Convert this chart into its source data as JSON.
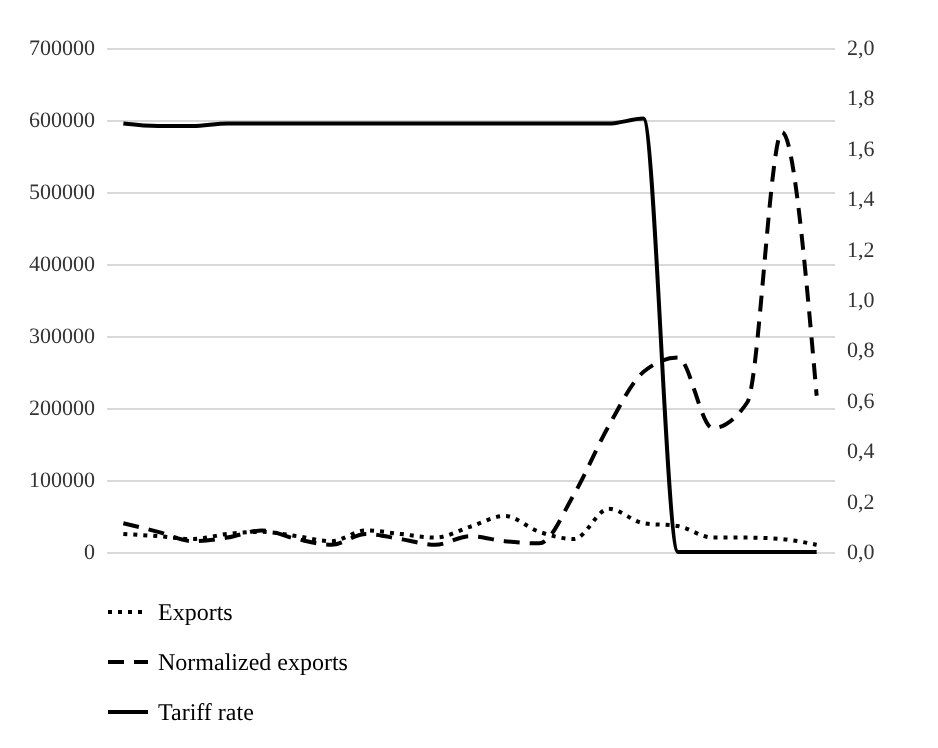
{
  "chart_data": {
    "type": "line",
    "categories": [
      null,
      null,
      null,
      null,
      null,
      null,
      null,
      null,
      null,
      null,
      null,
      null,
      null,
      null,
      null,
      null,
      null,
      null,
      null,
      null,
      null
    ],
    "series": [
      {
        "name": "Exports",
        "color": "#000000",
        "line_style": "dotted",
        "values": [
          25000,
          22000,
          18000,
          25000,
          28000,
          22000,
          15000,
          30000,
          25000,
          20000,
          35000,
          50000,
          28000,
          18000,
          60000,
          40000,
          36000,
          20000,
          20000,
          18000,
          10000
        ]
      },
      {
        "name": "Normalized exports",
        "color": "#000000",
        "line_style": "dashed",
        "values": [
          40000,
          28000,
          15000,
          20000,
          30000,
          18000,
          10000,
          25000,
          18000,
          10000,
          22000,
          15000,
          12000,
          80000,
          175000,
          250000,
          270000,
          172000,
          208000,
          583000,
          217000
        ]
      },
      {
        "name": "Tariff rate",
        "color": "#000000",
        "line_style": "solid",
        "axis": "y2",
        "values": [
          1.7,
          1.69,
          1.69,
          1.7,
          1.7,
          1.7,
          1.7,
          1.7,
          1.7,
          1.7,
          1.7,
          1.7,
          1.7,
          1.7,
          1.7,
          1.72,
          0,
          0,
          0,
          0,
          0
        ]
      }
    ],
    "ylim": [
      0,
      700000
    ],
    "yticks": [
      0,
      100000,
      200000,
      300000,
      400000,
      500000,
      600000,
      700000
    ],
    "y2lim": [
      0,
      2.0
    ],
    "y2ticks": [
      {
        "value": 0,
        "label": "0,0"
      },
      {
        "value": 0.2,
        "label": "0,2"
      },
      {
        "value": 0.4,
        "label": "0,4"
      },
      {
        "value": 0.6,
        "label": "0,6"
      },
      {
        "value": 0.8,
        "label": "0,8"
      },
      {
        "value": 1.0,
        "label": "1,0"
      },
      {
        "value": 1.2,
        "label": "1,2"
      },
      {
        "value": 1.4,
        "label": "1,4"
      },
      {
        "value": 1.6,
        "label": "1,6"
      },
      {
        "value": 1.8,
        "label": "1,8"
      },
      {
        "value": 2.0,
        "label": "2,0"
      }
    ],
    "grid": "y",
    "legend": "bottom",
    "marker": "none"
  }
}
